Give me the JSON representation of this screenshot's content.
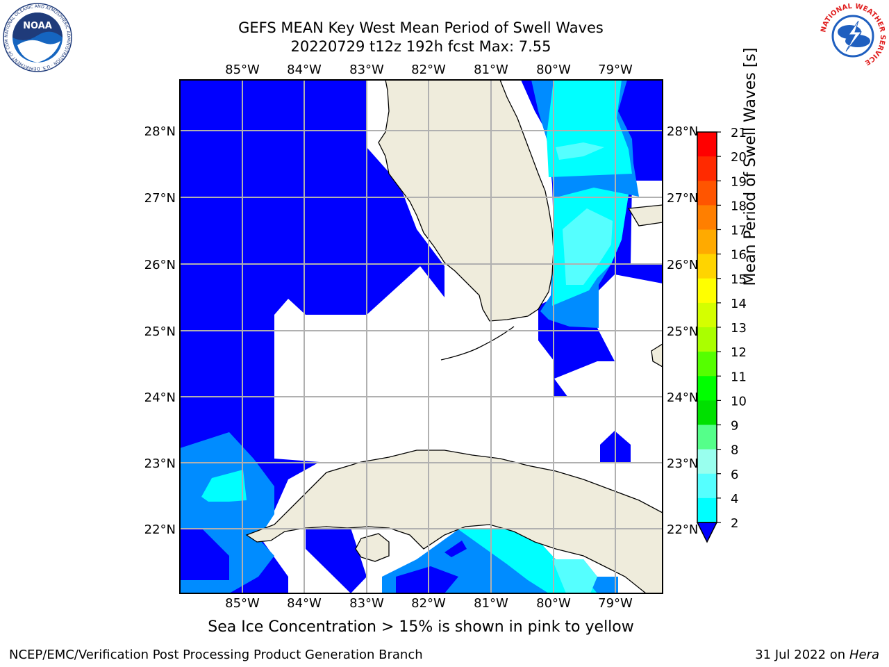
{
  "title": {
    "line1": "GEFS MEAN Key West Mean Period of Swell Waves",
    "line2": "20220729 t12z 192h fcst    Max: 7.55"
  },
  "map": {
    "lon_labels": [
      "85°W",
      "84°W",
      "83°W",
      "82°W",
      "81°W",
      "80°W",
      "79°W"
    ],
    "lat_labels": [
      "28°N",
      "27°N",
      "26°N",
      "25°N",
      "24°N",
      "23°N",
      "22°N"
    ],
    "land_color": "#efecdc",
    "grid_color": "#b0b0b0"
  },
  "colorbar": {
    "label": "Mean Period of Swell Waves [s]",
    "ticks": [
      "21",
      "20",
      "19",
      "18",
      "17",
      "16",
      "15",
      "14",
      "13",
      "12",
      "11",
      "10",
      "9",
      "8",
      "6",
      "4",
      "2"
    ],
    "colors": [
      "#ff0000",
      "#ff2a00",
      "#ff5500",
      "#ff7f00",
      "#ffaa00",
      "#ffd400",
      "#ffff00",
      "#d4ff00",
      "#aaff00",
      "#55ff00",
      "#00ff00",
      "#00e000",
      "#55ff8a",
      "#99ffee",
      "#55ffff",
      "#00ffff",
      "#008cff",
      "#0000ff"
    ]
  },
  "subcaption": "Sea Ice Concentration > 15% is shown in pink to yellow",
  "footer": {
    "left": "NCEP/EMC/Verification Post Processing Product Generation Branch",
    "right_prefix": "31 Jul 2022 on ",
    "right_host": "Hera"
  },
  "logos": {
    "noaa": "NOAA",
    "noaa_ring": "NATIONAL OCEANIC AND ATMOSPHERIC ADMINISTRATION · U.S. DEPARTMENT OF COMMERCE",
    "nws_ring": "NATIONAL WEATHER SERVICE"
  }
}
